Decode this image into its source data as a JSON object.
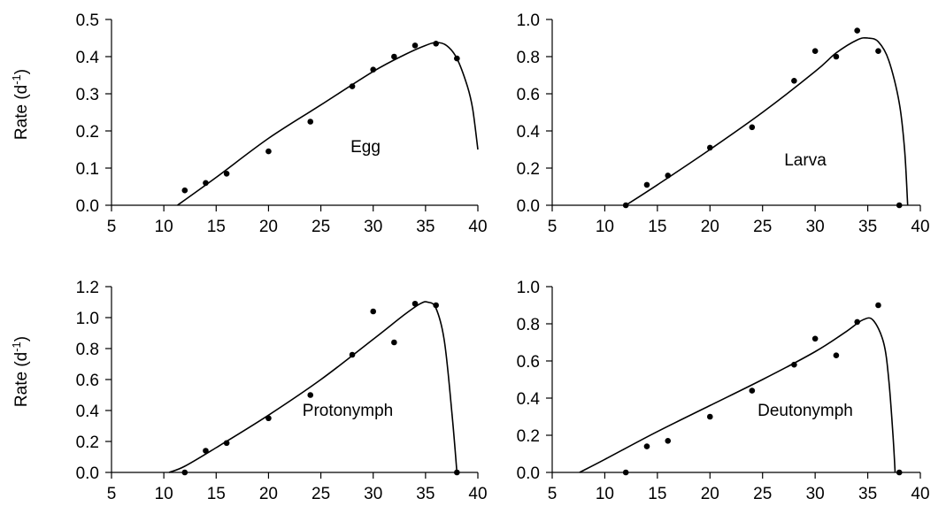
{
  "figure": {
    "y_axis_title": "Rate (d",
    "y_axis_title_sup": "-1",
    "y_axis_title_close": ")"
  },
  "chart_data": [
    {
      "type": "scatter",
      "title": "",
      "label": "Egg",
      "xlim": [
        5,
        40
      ],
      "xticks": [
        "5",
        "10",
        "15",
        "20",
        "25",
        "30",
        "35",
        "40"
      ],
      "ylim": [
        0,
        0.5
      ],
      "yticks": [
        "0.0",
        "0.1",
        "0.2",
        "0.3",
        "0.4",
        "0.5"
      ],
      "ylabel": "Rate (d-1)",
      "grid": false,
      "points": {
        "x": [
          12,
          14,
          16,
          20,
          24,
          28,
          30,
          32,
          34,
          36,
          38
        ],
        "y": [
          0.04,
          0.06,
          0.085,
          0.145,
          0.225,
          0.32,
          0.365,
          0.4,
          0.43,
          0.435,
          0.395
        ]
      },
      "fit_curve": {
        "x": [
          11.3,
          15,
          20,
          25,
          30,
          33,
          35,
          36,
          37,
          38,
          39,
          39.5,
          40
        ],
        "y": [
          0,
          0.075,
          0.18,
          0.27,
          0.36,
          0.405,
          0.43,
          0.438,
          0.43,
          0.395,
          0.32,
          0.26,
          0.15
        ]
      }
    },
    {
      "type": "scatter",
      "title": "",
      "label": "Larva",
      "xlim": [
        5,
        40
      ],
      "xticks": [
        "5",
        "10",
        "15",
        "20",
        "25",
        "30",
        "35",
        "40"
      ],
      "ylim": [
        0,
        1.0
      ],
      "yticks": [
        "0.0",
        "0.2",
        "0.4",
        "0.6",
        "0.8",
        "1.0"
      ],
      "ylabel": "",
      "grid": false,
      "points": {
        "x": [
          12,
          14,
          16,
          20,
          24,
          28,
          30,
          32,
          34,
          36,
          38
        ],
        "y": [
          0.0,
          0.11,
          0.16,
          0.31,
          0.42,
          0.67,
          0.83,
          0.8,
          0.94,
          0.83,
          0.0
        ]
      },
      "fit_curve": {
        "x": [
          12,
          15,
          20,
          25,
          30,
          32,
          34,
          35,
          36,
          37,
          38,
          38.5,
          38.8
        ],
        "y": [
          0,
          0.11,
          0.3,
          0.5,
          0.72,
          0.82,
          0.89,
          0.9,
          0.88,
          0.78,
          0.55,
          0.3,
          0
        ]
      }
    },
    {
      "type": "scatter",
      "title": "",
      "label": "Protonymph",
      "xlim": [
        5,
        40
      ],
      "xticks": [
        "5",
        "10",
        "15",
        "20",
        "25",
        "30",
        "35",
        "40"
      ],
      "ylim": [
        0,
        1.2
      ],
      "yticks": [
        "0.0",
        "0.2",
        "0.4",
        "0.6",
        "0.8",
        "1.0",
        "1.2"
      ],
      "ylabel": "Rate (d-1)",
      "grid": false,
      "points": {
        "x": [
          12,
          14,
          16,
          20,
          24,
          28,
          30,
          32,
          34,
          36,
          38
        ],
        "y": [
          0.0,
          0.14,
          0.19,
          0.35,
          0.5,
          0.76,
          1.04,
          0.84,
          1.09,
          1.08,
          0.0
        ]
      },
      "fit_curve": {
        "x": [
          10.5,
          12,
          15,
          20,
          25,
          30,
          33,
          34.5,
          35.2,
          36,
          36.8,
          37.5,
          38
        ],
        "y": [
          0,
          0.04,
          0.16,
          0.37,
          0.6,
          0.86,
          1.02,
          1.09,
          1.1,
          1.06,
          0.85,
          0.4,
          0
        ]
      }
    },
    {
      "type": "scatter",
      "title": "",
      "label": "Deutonymph",
      "xlim": [
        5,
        40
      ],
      "xticks": [
        "5",
        "10",
        "15",
        "20",
        "25",
        "30",
        "35",
        "40"
      ],
      "ylim": [
        0,
        1.0
      ],
      "yticks": [
        "0.0",
        "0.2",
        "0.4",
        "0.6",
        "0.8",
        "1.0"
      ],
      "ylabel": "",
      "grid": false,
      "points": {
        "x": [
          12,
          14,
          16,
          20,
          24,
          28,
          30,
          32,
          34,
          36,
          38
        ],
        "y": [
          0.0,
          0.14,
          0.17,
          0.3,
          0.44,
          0.58,
          0.72,
          0.63,
          0.81,
          0.9,
          0.0
        ]
      },
      "fit_curve": {
        "x": [
          7.6,
          10,
          15,
          20,
          25,
          30,
          33,
          34.5,
          35.5,
          36.5,
          37,
          37.4,
          37.6
        ],
        "y": [
          0,
          0.07,
          0.22,
          0.36,
          0.5,
          0.65,
          0.76,
          0.82,
          0.82,
          0.7,
          0.5,
          0.2,
          0
        ]
      }
    }
  ]
}
